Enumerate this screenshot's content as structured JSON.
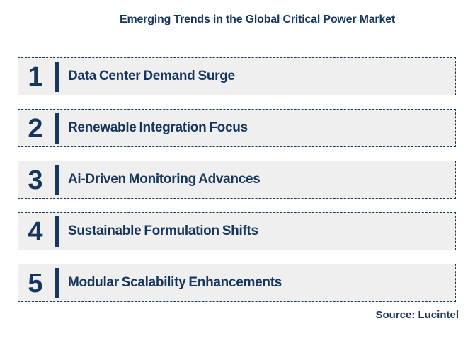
{
  "header": {
    "title": "Emerging Trends in the Global Critical Power Market"
  },
  "trends": [
    {
      "number": "1",
      "label": "Data Center Demand Surge"
    },
    {
      "number": "2",
      "label": "Renewable Integration Focus"
    },
    {
      "number": "3",
      "label": "Ai-Driven Monitoring Advances"
    },
    {
      "number": "4",
      "label": "Sustainable Formulation Shifts"
    },
    {
      "number": "5",
      "label": "Modular Scalability Enhancements"
    }
  ],
  "footer": {
    "source": "Source: Lucintel"
  },
  "colors": {
    "navy": "#17365D",
    "row_background": "#EFEFEF",
    "page_background": "#FFFFFF"
  }
}
